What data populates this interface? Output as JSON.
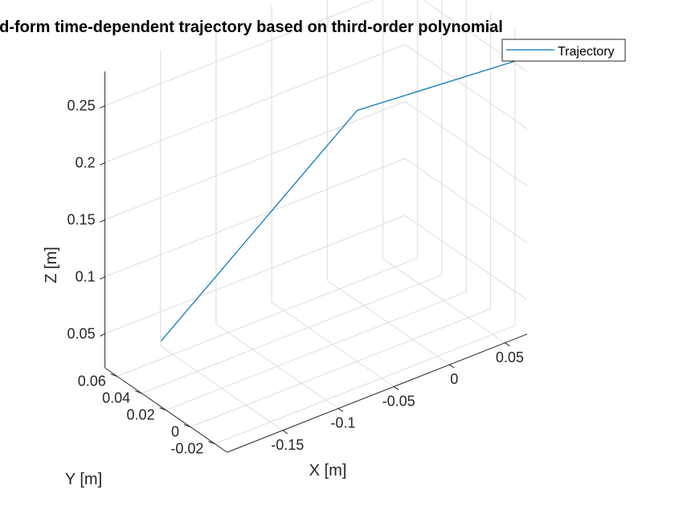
{
  "chart_data": {
    "type": "line",
    "title": "ed-form time-dependent trajectory based on third-order polynomial",
    "xlabel": "X [m]",
    "ylabel": "Y [m]",
    "zlabel": "Z [m]",
    "x_ticks": [
      "-0.15",
      "-0.1",
      "-0.05",
      "0",
      "0.05"
    ],
    "y_ticks": [
      "-0.02",
      "0",
      "0.02",
      "0.04",
      "0.06"
    ],
    "z_ticks": [
      "0.05",
      "0.1",
      "0.15",
      "0.2",
      "0.25"
    ],
    "grid": true,
    "legend_position": "top-right",
    "series": [
      {
        "name": "Trajectory",
        "color": "#0072BD",
        "points": [
          {
            "x": -0.155,
            "y": 0.065,
            "z": 0.03
          },
          {
            "x": -0.05,
            "y": 0.0,
            "z": 0.24
          },
          {
            "x": 0.05,
            "y": -0.04,
            "z": 0.275
          }
        ]
      }
    ]
  }
}
